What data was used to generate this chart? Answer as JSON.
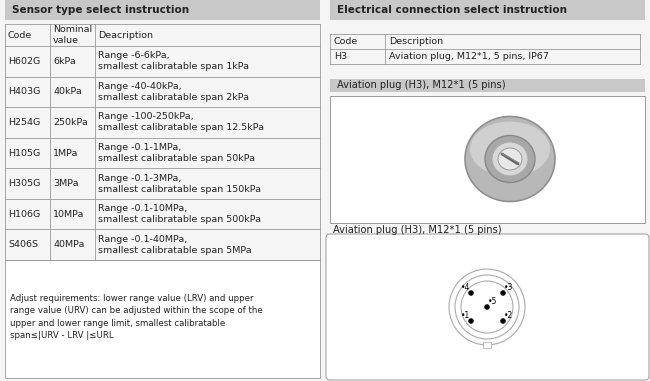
{
  "bg_color": "#f5f5f5",
  "left_section": {
    "header_bg": "#c8c8c8",
    "header_text": "Sensor type select instruction",
    "table_cols": [
      "Code",
      "Nominal\nvalue",
      "Deacription"
    ],
    "table_rows": [
      [
        "H602G",
        "6kPa",
        "Range -6-6kPa,\nsmallest calibratable span 1kPa"
      ],
      [
        "H403G",
        "40kPa",
        "Range -40-40kPa,\nsmallest calibratable span 2kPa"
      ],
      [
        "H254G",
        "250kPa",
        "Range -100-250kPa,\nsmallest calibratable span 12.5kPa"
      ],
      [
        "H105G",
        "1MPa",
        "Range -0.1-1MPa,\nsmallest calibratable span 50kPa"
      ],
      [
        "H305G",
        "3MPa",
        "Range -0.1-3MPa,\nsmallest calibratable span 150kPa"
      ],
      [
        "H106G",
        "10MPa",
        "Range -0.1-10MPa,\nsmallest calibratable span 500kPa"
      ],
      [
        "S406S",
        "40MPa",
        "Range -0.1-40MPa,\nsmallest calibratable span 5MPa"
      ]
    ],
    "footer_text": "Adjust requirements: lower range value (LRV) and upper\nrange value (URV) can be adjusted within the scope of the\nupper and lower range limit, smallest calibratable\nspan≤|URV - LRV |≤URL"
  },
  "right_section": {
    "header_bg": "#c8c8c8",
    "header_text": "Electrical connection select instruction",
    "elec_table_cols": [
      "Code",
      "Description"
    ],
    "elec_table_rows": [
      [
        "H3",
        "Aviation plug, M12*1, 5 pins, IP67"
      ]
    ],
    "plug_label1": "Aviation plug (H3), M12*1 (5 pins)",
    "plug_label2": "Aviation plug (H3), M12*1 (5 pins)"
  },
  "font_size_header": 7.5,
  "font_size_cell": 6.8,
  "font_size_footer": 6.2,
  "line_color": "#999999",
  "text_color": "#222222"
}
